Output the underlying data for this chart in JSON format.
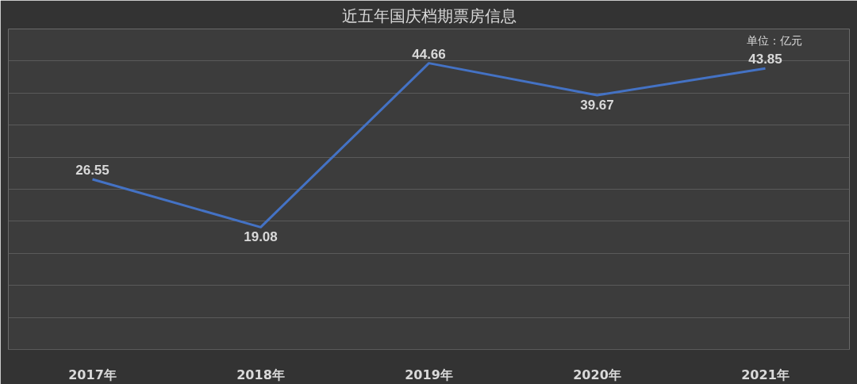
{
  "chart_data": {
    "type": "line",
    "title": "近五年国庆档期票房信息",
    "categories": [
      "2017年",
      "2018年",
      "2019年",
      "2020年",
      "2021年"
    ],
    "series": [
      {
        "color": "#4472c4",
        "values": [
          26.55,
          19.08,
          44.66,
          39.67,
          43.85
        ]
      }
    ],
    "ylim": [
      0,
      50
    ],
    "yticks": [
      {
        "value": 0,
        "label": null
      },
      {
        "value": 5,
        "label": null
      },
      {
        "value": 10,
        "label": null
      },
      {
        "value": 15,
        "label": null
      },
      {
        "value": 20,
        "label": null
      },
      {
        "value": 25,
        "label": null
      },
      {
        "value": 30,
        "label": null
      },
      {
        "value": 35,
        "label": null
      },
      {
        "value": 40,
        "label": null
      },
      {
        "value": 45,
        "label": null
      },
      {
        "value": 50,
        "label": null
      }
    ],
    "grid": "y",
    "tick_labels": "x",
    "data_labels": true,
    "marker": "none",
    "line_style": "solid",
    "annotations": [
      "单位：亿元"
    ]
  }
}
